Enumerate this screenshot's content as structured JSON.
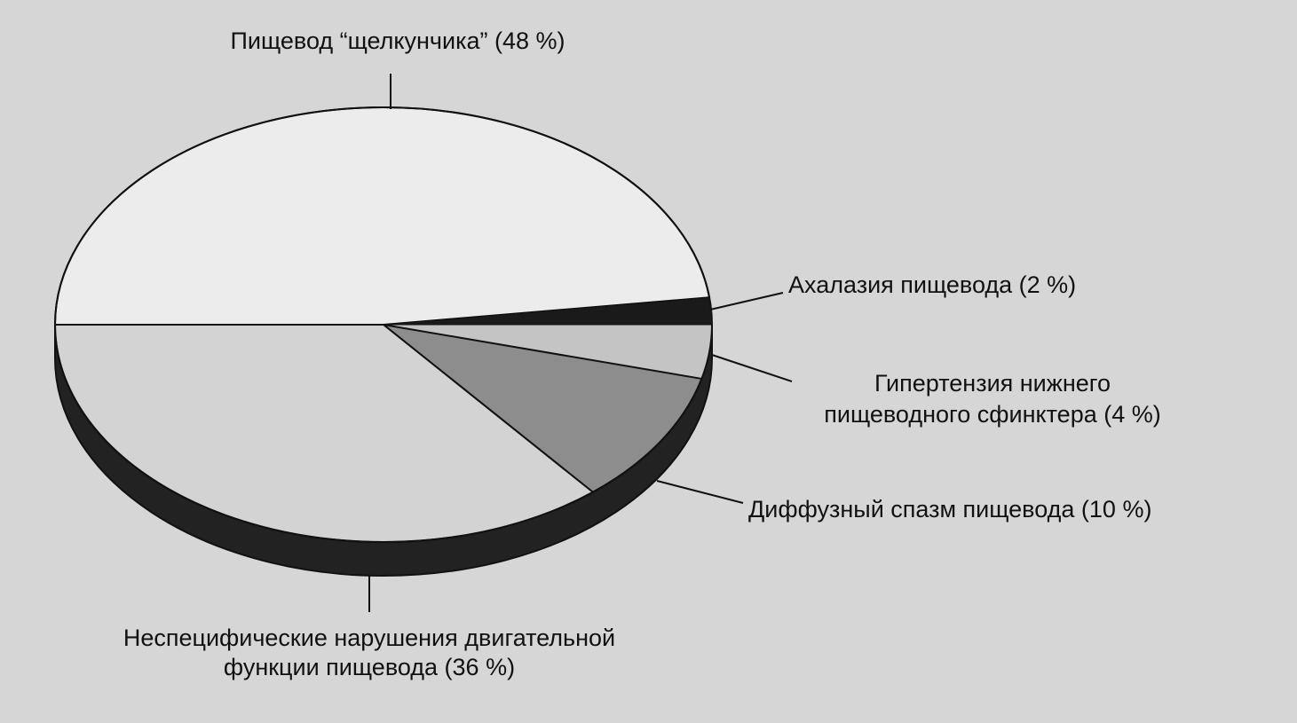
{
  "chart_data": {
    "type": "pie",
    "title": "",
    "three_d": true,
    "grid": false,
    "legend": "none",
    "slices": [
      {
        "label_lines": [
          "Пищевод “щелкунчика” (48 %)"
        ],
        "value": 48,
        "color": "#ececec"
      },
      {
        "label_lines": [
          "Ахалазия пищевода (2 %)"
        ],
        "value": 2,
        "color": "#1a1a1a"
      },
      {
        "label_lines": [
          "Гипертензия нижнего",
          "пищеводного сфинктера (4 %)"
        ],
        "value": 4,
        "color": "#c4c4c4"
      },
      {
        "label_lines": [
          "Диффузный спазм пищевода (10 %)"
        ],
        "value": 10,
        "color": "#8d8d8d"
      },
      {
        "label_lines": [
          "Неспецифические нарушения двигательной",
          "функции пищевода (36 %)"
        ],
        "value": 36,
        "color": "#d3d3d3"
      }
    ],
    "colors": {
      "side": "#222222",
      "outline": "#111111",
      "background": "#d6d6d6"
    }
  }
}
